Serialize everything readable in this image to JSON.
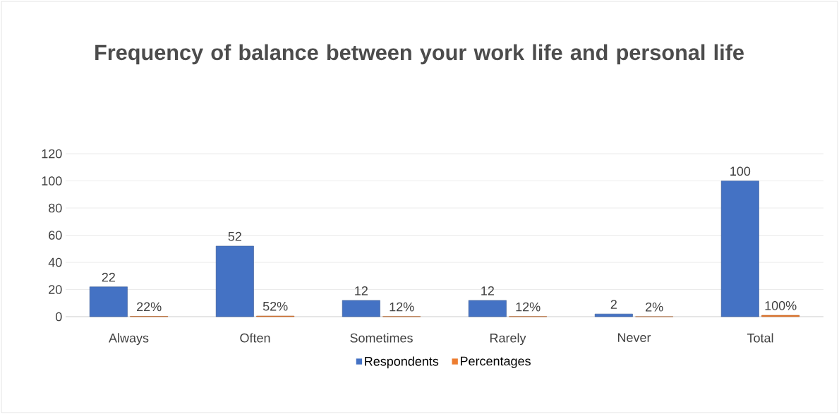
{
  "chart_data": {
    "type": "bar",
    "title": "Frequency of balance between your work life and personal life",
    "categories": [
      "Always",
      "Often",
      "Sometimes",
      "Rarely",
      "Never",
      "Total"
    ],
    "series": [
      {
        "name": "Respondents",
        "color": "#4472c4",
        "values": [
          22,
          52,
          12,
          12,
          2,
          100
        ],
        "value_labels": [
          "22",
          "52",
          "12",
          "12",
          "2",
          "100"
        ]
      },
      {
        "name": "Percentages",
        "color": "#ed7d31",
        "values": [
          0.22,
          0.52,
          0.12,
          0.12,
          0.02,
          1.0
        ],
        "value_labels": [
          "22%",
          "52%",
          "12%",
          "12%",
          "2%",
          "100%"
        ]
      }
    ],
    "ylim": [
      0,
      120
    ],
    "yticks": [
      0,
      20,
      40,
      60,
      80,
      100,
      120
    ],
    "grid": "y",
    "legend": "bottom"
  }
}
